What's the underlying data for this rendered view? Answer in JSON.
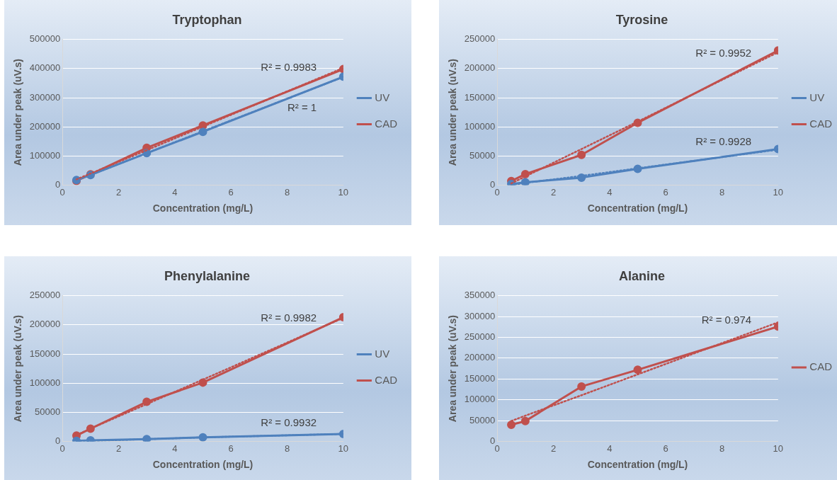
{
  "chart_data": [
    {
      "type": "line",
      "title": "Tryptophan",
      "xlabel": "Concentration (mg/L)",
      "ylabel": "Area under peak (uV.s)",
      "x": [
        0.5,
        1,
        3,
        5,
        10
      ],
      "xlim": [
        0,
        10
      ],
      "xticks": [
        0,
        2,
        4,
        6,
        8,
        10
      ],
      "ylim": [
        0,
        500000
      ],
      "yticks": [
        0,
        100000,
        200000,
        300000,
        400000,
        500000
      ],
      "grid": "y",
      "legend": "right",
      "marker": "circle",
      "series": [
        {
          "name": "UV",
          "color": "#4f81bd",
          "values": [
            18000,
            35000,
            110000,
            183000,
            372000
          ]
        },
        {
          "name": "CAD",
          "color": "#c0504d",
          "values": [
            15000,
            37000,
            128000,
            205000,
            398000
          ]
        },
        {
          "type": "line",
          "color": "#c0504d",
          "values": [
            20000,
            40000,
            120000,
            201000,
            402000
          ],
          "line_style": "dotted",
          "marker": "none"
        },
        {
          "type": "line",
          "color": "#4f81bd",
          "values": [
            17000,
            35000,
            110000,
            185000,
            371000
          ],
          "line_style": "dotted",
          "marker": "none"
        }
      ],
      "annotations": [
        "R² = 0.9983",
        "R² = 1"
      ]
    },
    {
      "type": "line",
      "title": "Tyrosine",
      "xlabel": "Concentration (mg/L)",
      "ylabel": "Area under peak (uV.s)",
      "x": [
        0.5,
        1,
        3,
        5,
        10
      ],
      "xlim": [
        0,
        10
      ],
      "xticks": [
        0,
        2,
        4,
        6,
        8,
        10
      ],
      "ylim": [
        0,
        250000
      ],
      "yticks": [
        0,
        50000,
        100000,
        150000,
        200000,
        250000
      ],
      "grid": "y",
      "legend": "right",
      "marker": "circle",
      "series": [
        {
          "name": "UV",
          "color": "#4f81bd",
          "values": [
            2000,
            5000,
            13000,
            28000,
            62000
          ]
        },
        {
          "name": "CAD",
          "color": "#c0504d",
          "values": [
            7000,
            19000,
            52000,
            107000,
            231000
          ]
        },
        {
          "type": "line",
          "color": "#c0504d",
          "values": [
            3000,
            15000,
            62000,
            109000,
            228000
          ],
          "line_style": "dotted",
          "marker": "none"
        },
        {
          "type": "line",
          "color": "#4f81bd",
          "values": [
            0,
            4000,
            16000,
            29000,
            61000
          ],
          "line_style": "dotted",
          "marker": "none"
        }
      ],
      "annotations": [
        "R² = 0.9952",
        "R² = 0.9928"
      ]
    },
    {
      "type": "line",
      "title": "Phenylalanine",
      "xlabel": "Concentration (mg/L)",
      "ylabel": "Area under peak (uV.s)",
      "x": [
        0.5,
        1,
        3,
        5,
        10
      ],
      "xlim": [
        0,
        10
      ],
      "xticks": [
        0,
        2,
        4,
        6,
        8,
        10
      ],
      "ylim": [
        0,
        250000
      ],
      "yticks": [
        0,
        50000,
        100000,
        150000,
        200000,
        250000
      ],
      "grid": "y",
      "legend": "right",
      "marker": "circle",
      "series": [
        {
          "name": "UV",
          "color": "#4f81bd",
          "values": [
            1000,
            2000,
            4000,
            7000,
            13000
          ]
        },
        {
          "name": "CAD",
          "color": "#c0504d",
          "values": [
            10000,
            22000,
            68000,
            101000,
            213000
          ]
        },
        {
          "type": "line",
          "color": "#c0504d",
          "values": [
            11000,
            22000,
            64000,
            106000,
            212000
          ],
          "line_style": "dotted",
          "marker": "none"
        },
        {
          "type": "line",
          "color": "#4f81bd",
          "values": [
            1000,
            1000,
            4000,
            7000,
            13000
          ],
          "line_style": "dotted",
          "marker": "none"
        }
      ],
      "annotations": [
        "R² = 0.9982",
        "R² = 0.9932"
      ]
    },
    {
      "type": "line",
      "title": "Alanine",
      "xlabel": "Concentration (mg/L)",
      "ylabel": "Area under peak (uV.s)",
      "x": [
        0.5,
        1,
        3,
        5,
        10
      ],
      "xlim": [
        0,
        10
      ],
      "xticks": [
        0,
        2,
        4,
        6,
        8,
        10
      ],
      "ylim": [
        0,
        350000
      ],
      "yticks": [
        0,
        50000,
        100000,
        150000,
        200000,
        250000,
        300000,
        350000
      ],
      "grid": "y",
      "legend": "right",
      "marker": "circle",
      "series": [
        {
          "name": "CAD",
          "color": "#c0504d",
          "values": [
            40000,
            49000,
            132000,
            172000,
            276000
          ]
        },
        {
          "type": "line",
          "color": "#c0504d",
          "values": [
            49000,
            62000,
            111000,
            161000,
            286000
          ],
          "line_style": "dotted",
          "marker": "none"
        }
      ],
      "annotations": [
        "R² = 0.974"
      ]
    }
  ]
}
